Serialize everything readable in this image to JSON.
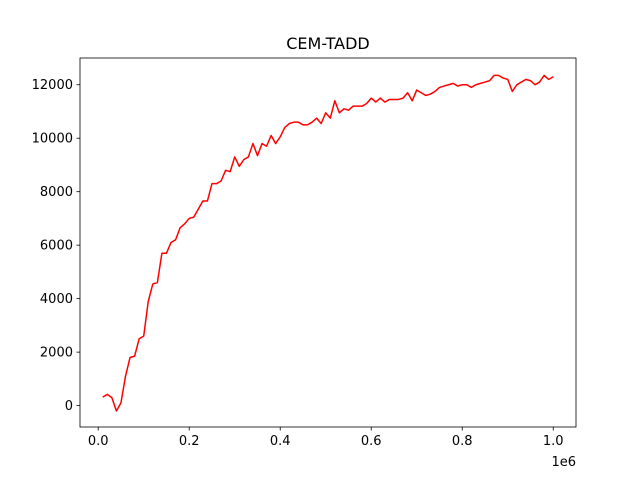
{
  "chart_data": {
    "type": "line",
    "title": "CEM-TADD",
    "xlabel": "",
    "ylabel": "",
    "x_offset_label": "1e6",
    "xlim": [
      -0.04,
      1.05
    ],
    "ylim": [
      -800,
      13000
    ],
    "x_ticks": [
      0.0,
      0.2,
      0.4,
      0.6,
      0.8,
      1.0
    ],
    "x_tick_labels": [
      "0.0",
      "0.2",
      "0.4",
      "0.6",
      "0.8",
      "1.0"
    ],
    "y_ticks": [
      0,
      2000,
      4000,
      6000,
      8000,
      10000,
      12000
    ],
    "y_tick_labels": [
      "0",
      "2000",
      "4000",
      "6000",
      "8000",
      "10000",
      "12000"
    ],
    "grid": false,
    "series": [
      {
        "color": "#ff0000",
        "x": [
          0.01,
          0.02,
          0.03,
          0.04,
          0.05,
          0.06,
          0.07,
          0.08,
          0.09,
          0.1,
          0.11,
          0.12,
          0.13,
          0.14,
          0.15,
          0.16,
          0.17,
          0.18,
          0.19,
          0.2,
          0.21,
          0.22,
          0.23,
          0.24,
          0.25,
          0.26,
          0.27,
          0.28,
          0.29,
          0.3,
          0.31,
          0.32,
          0.33,
          0.34,
          0.35,
          0.36,
          0.37,
          0.38,
          0.39,
          0.4,
          0.41,
          0.42,
          0.43,
          0.44,
          0.45,
          0.46,
          0.47,
          0.48,
          0.49,
          0.5,
          0.51,
          0.52,
          0.53,
          0.54,
          0.55,
          0.56,
          0.57,
          0.58,
          0.59,
          0.6,
          0.61,
          0.62,
          0.63,
          0.64,
          0.65,
          0.66,
          0.67,
          0.68,
          0.69,
          0.7,
          0.71,
          0.72,
          0.73,
          0.74,
          0.75,
          0.76,
          0.77,
          0.78,
          0.79,
          0.8,
          0.81,
          0.82,
          0.83,
          0.84,
          0.85,
          0.86,
          0.87,
          0.88,
          0.89,
          0.9,
          0.91,
          0.92,
          0.93,
          0.94,
          0.95,
          0.96,
          0.97,
          0.98,
          0.99,
          1.0
        ],
        "y": [
          320,
          420,
          300,
          -200,
          100,
          1100,
          1800,
          1850,
          2500,
          2600,
          3900,
          4550,
          4600,
          5700,
          5700,
          6100,
          6200,
          6650,
          6800,
          7000,
          7050,
          7350,
          7650,
          7650,
          8300,
          8300,
          8400,
          8800,
          8750,
          9300,
          8950,
          9200,
          9300,
          9800,
          9350,
          9800,
          9700,
          10100,
          9800,
          10050,
          10400,
          10550,
          10600,
          10600,
          10500,
          10500,
          10600,
          10750,
          10550,
          10950,
          10750,
          11400,
          10950,
          11100,
          11050,
          11200,
          11200,
          11200,
          11300,
          11500,
          11350,
          11500,
          11350,
          11450,
          11450,
          11450,
          11500,
          11700,
          11400,
          11800,
          11700,
          11600,
          11650,
          11750,
          11900,
          11950,
          12000,
          12050,
          11950,
          12000,
          12000,
          11900,
          12000,
          12050,
          12100,
          12150,
          12350,
          12350,
          12250,
          12200,
          11750,
          12000,
          12100,
          12200,
          12150,
          12000,
          12100,
          12350,
          12200,
          12300
        ]
      }
    ]
  }
}
